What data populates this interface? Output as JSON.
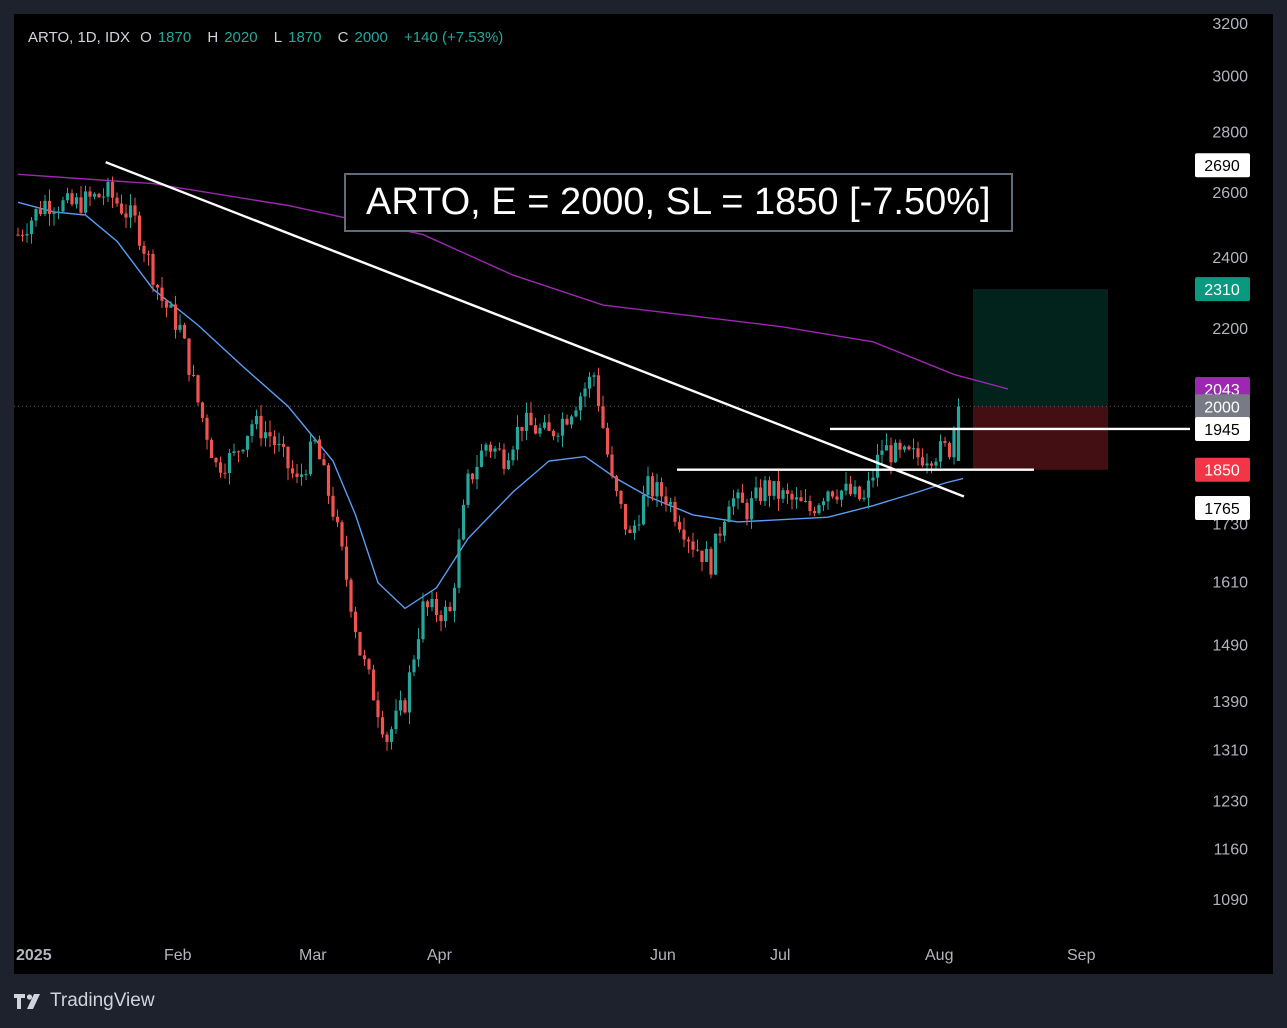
{
  "legend": {
    "symbol": "ARTO, 1D, IDX",
    "open_label": "O",
    "open": "1870",
    "high_label": "H",
    "high": "2020",
    "low_label": "L",
    "low": "1870",
    "close_label": "C",
    "close": "2000",
    "change": "+140 (+7.53%)"
  },
  "annotation": "ARTO, E = 2000, SL = 1850 [-7.50%]",
  "brand": "TradingView",
  "colors": {
    "up": "#26a69a",
    "down": "#ef5350",
    "ma_long": "#9c27b0",
    "ma_short": "#5b9cf6",
    "target": "#089981",
    "stop": "#f23645",
    "ma_long_label": "#9c27b0",
    "last_price": "#787b86"
  },
  "chart_data": {
    "type": "candlestick",
    "y_ticks": [
      3200,
      3000,
      2800,
      2600,
      2400,
      2200,
      1730,
      1610,
      1490,
      1390,
      1310,
      1230,
      1160,
      1090
    ],
    "x_ticks": [
      "2025",
      "Feb",
      "Mar",
      "Apr",
      "Jun",
      "Jul",
      "Aug",
      "Sep"
    ],
    "price_labels": [
      {
        "value": "2690",
        "kind": "white"
      },
      {
        "value": "2310",
        "kind": "target"
      },
      {
        "value": "2043",
        "kind": "ma_long"
      },
      {
        "value": "2000",
        "kind": "last"
      },
      {
        "value": "1945",
        "kind": "white"
      },
      {
        "value": "1850",
        "kind": "stop"
      },
      {
        "value": "1765",
        "kind": "white"
      }
    ],
    "entry": 2000,
    "stop_loss": 1850,
    "target": 2310,
    "resistance": 1945,
    "support": 1850,
    "trendline": [
      {
        "date": "2025-01-22",
        "price": 2700
      },
      {
        "date": "2025-08-11",
        "price": 1790
      }
    ],
    "ma_long": [
      [
        0,
        2660
      ],
      [
        30,
        2630
      ],
      [
        60,
        2560
      ],
      [
        90,
        2470
      ],
      [
        110,
        2350
      ],
      [
        130,
        2265
      ],
      [
        150,
        2235
      ],
      [
        170,
        2205
      ],
      [
        190,
        2165
      ],
      [
        208,
        2080
      ],
      [
        220,
        2043
      ]
    ],
    "ma_short": [
      [
        0,
        2570
      ],
      [
        8,
        2540
      ],
      [
        15,
        2530
      ],
      [
        22,
        2450
      ],
      [
        30,
        2310
      ],
      [
        40,
        2210
      ],
      [
        50,
        2100
      ],
      [
        60,
        2000
      ],
      [
        70,
        1870
      ],
      [
        75,
        1750
      ],
      [
        80,
        1610
      ],
      [
        86,
        1560
      ],
      [
        93,
        1600
      ],
      [
        100,
        1700
      ],
      [
        110,
        1800
      ],
      [
        118,
        1870
      ],
      [
        126,
        1880
      ],
      [
        133,
        1830
      ],
      [
        140,
        1790
      ],
      [
        150,
        1750
      ],
      [
        160,
        1735
      ],
      [
        170,
        1740
      ],
      [
        180,
        1745
      ],
      [
        190,
        1770
      ],
      [
        200,
        1800
      ],
      [
        206,
        1820
      ],
      [
        210,
        1830
      ]
    ],
    "close_path": [
      [
        0,
        2470
      ],
      [
        6,
        2570
      ],
      [
        12,
        2560
      ],
      [
        20,
        2600
      ],
      [
        26,
        2510
      ],
      [
        32,
        2280
      ],
      [
        36,
        2200
      ],
      [
        40,
        2010
      ],
      [
        44,
        1860
      ],
      [
        48,
        1880
      ],
      [
        52,
        1960
      ],
      [
        56,
        1930
      ],
      [
        62,
        1820
      ],
      [
        66,
        1910
      ],
      [
        70,
        1760
      ],
      [
        76,
        1480
      ],
      [
        82,
        1330
      ],
      [
        86,
        1390
      ],
      [
        90,
        1560
      ],
      [
        96,
        1550
      ],
      [
        100,
        1820
      ],
      [
        104,
        1910
      ],
      [
        108,
        1880
      ],
      [
        112,
        1960
      ],
      [
        118,
        1930
      ],
      [
        122,
        1980
      ],
      [
        128,
        2080
      ],
      [
        132,
        1820
      ],
      [
        136,
        1700
      ],
      [
        140,
        1810
      ],
      [
        144,
        1790
      ],
      [
        150,
        1690
      ],
      [
        154,
        1650
      ],
      [
        158,
        1790
      ],
      [
        162,
        1760
      ],
      [
        166,
        1810
      ],
      [
        170,
        1790
      ],
      [
        176,
        1760
      ],
      [
        180,
        1810
      ],
      [
        184,
        1800
      ],
      [
        188,
        1780
      ],
      [
        192,
        1900
      ],
      [
        196,
        1880
      ],
      [
        200,
        1880
      ],
      [
        204,
        1890
      ],
      [
        207,
        1900
      ],
      [
        209,
        2000
      ]
    ]
  }
}
